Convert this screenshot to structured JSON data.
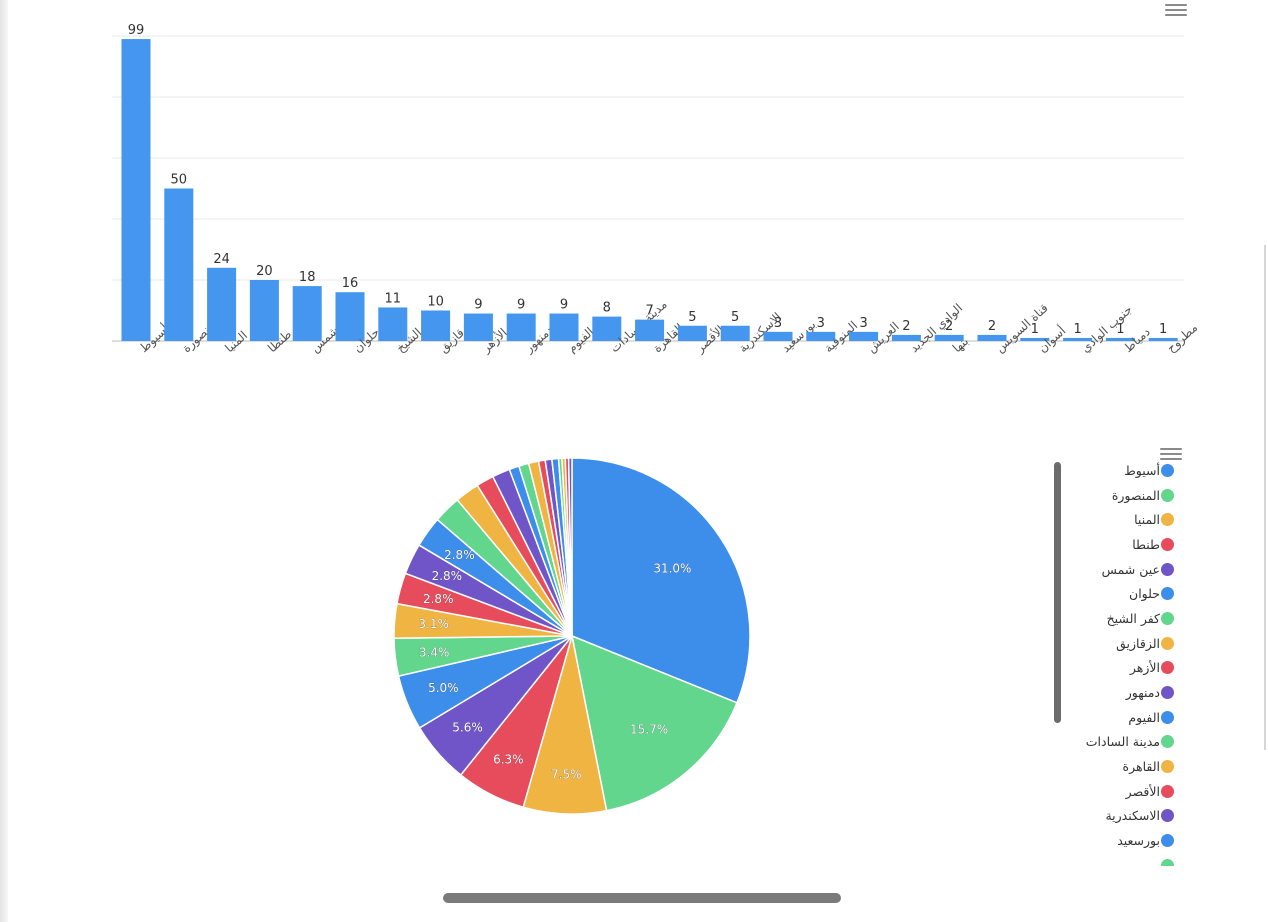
{
  "bar_chart": {
    "chart_data": {
      "type": "bar",
      "categories": [
        "أسيوط",
        "المنصورة",
        "المنيا",
        "طنطا",
        "عين شمس",
        "حلوان",
        "كفر الشيخ",
        "الزقازيق",
        "الأزهر",
        "دمنهور",
        "الفيوم",
        "مدينة السادات",
        "القاهرة",
        "الأقصر",
        "الاسكندرية",
        "بورسعيد",
        "المنوفية",
        "العريش",
        "الوادي الجديد",
        "بنها",
        "قناة السويس",
        "أسوان",
        "جنوب الوادي",
        "دمياط",
        "مطروح"
      ],
      "values": [
        99,
        50,
        24,
        20,
        18,
        16,
        11,
        10,
        9,
        9,
        9,
        8,
        7,
        5,
        5,
        3,
        3,
        3,
        2,
        2,
        2,
        1,
        1,
        1,
        1
      ],
      "ylim": [
        0,
        100
      ],
      "grid": true,
      "data_labels": true,
      "color": "#4596ee"
    }
  },
  "pie_chart": {
    "chart_data": {
      "type": "pie",
      "slices": [
        {
          "label": "أسيوط",
          "value": 31.0,
          "color": "#3d8eea"
        },
        {
          "label": "المنصورة",
          "value": 15.7,
          "color": "#62d68d"
        },
        {
          "label": "المنيا",
          "value": 7.5,
          "color": "#f0b442"
        },
        {
          "label": "طنطا",
          "value": 6.3,
          "color": "#e74c5c"
        },
        {
          "label": "عين شمس",
          "value": 5.6,
          "color": "#6f55c8"
        },
        {
          "label": "حلوان",
          "value": 5.0,
          "color": "#3d8eea"
        },
        {
          "label": "كفر الشيخ",
          "value": 3.4,
          "color": "#62d68d"
        },
        {
          "label": "الزقازيق",
          "value": 3.1,
          "color": "#f0b442"
        },
        {
          "label": "الأزهر",
          "value": 2.8,
          "color": "#e74c5c"
        },
        {
          "label": "دمنهور",
          "value": 2.8,
          "color": "#6f55c8"
        },
        {
          "label": "الفيوم",
          "value": 2.8,
          "color": "#3d8eea"
        },
        {
          "label": "مدينة السادات",
          "value": 2.5,
          "color": "#62d68d"
        },
        {
          "label": "القاهرة",
          "value": 2.2,
          "color": "#f0b442"
        },
        {
          "label": "الأقصر",
          "value": 1.6,
          "color": "#e74c5c"
        },
        {
          "label": "الاسكندرية",
          "value": 1.6,
          "color": "#6f55c8"
        },
        {
          "label": "بورسعيد",
          "value": 0.9,
          "color": "#3d8eea"
        },
        {
          "label": "المنوفية",
          "value": 0.9,
          "color": "#62d68d"
        },
        {
          "label": "العريش",
          "value": 0.9,
          "color": "#f0b442"
        },
        {
          "label": "الوادي الجديد",
          "value": 0.6,
          "color": "#e74c5c"
        },
        {
          "label": "بنها",
          "value": 0.6,
          "color": "#6f55c8"
        },
        {
          "label": "قناة السويس",
          "value": 0.6,
          "color": "#3d8eea"
        },
        {
          "label": "أسوان",
          "value": 0.3,
          "color": "#62d68d"
        },
        {
          "label": "جنوب الوادي",
          "value": 0.3,
          "color": "#f0b442"
        },
        {
          "label": "دمياط",
          "value": 0.3,
          "color": "#e74c5c"
        },
        {
          "label": "مطروح",
          "value": 0.3,
          "color": "#6f55c8"
        }
      ],
      "shown_labels": [
        "31.0%",
        "15.7%",
        "7.5%",
        "6.3%",
        "5.6%",
        "5.0%",
        "3.4%",
        "3.1%",
        "2.8%",
        "2.8%",
        "2.8%"
      ],
      "legend_placement": "right"
    }
  },
  "legend": {
    "items": [
      {
        "label": "أسيوط",
        "color": "#3d8eea"
      },
      {
        "label": "المنصورة",
        "color": "#62d68d"
      },
      {
        "label": "المنيا",
        "color": "#f0b442"
      },
      {
        "label": "طنطا",
        "color": "#e74c5c"
      },
      {
        "label": "عين شمس",
        "color": "#6f55c8"
      },
      {
        "label": "حلوان",
        "color": "#3d8eea"
      },
      {
        "label": "كفر الشيخ",
        "color": "#62d68d"
      },
      {
        "label": "الزقازيق",
        "color": "#f0b442"
      },
      {
        "label": "الأزهر",
        "color": "#e74c5c"
      },
      {
        "label": "دمنهور",
        "color": "#6f55c8"
      },
      {
        "label": "الفيوم",
        "color": "#3d8eea"
      },
      {
        "label": "مدينة السادات",
        "color": "#62d68d"
      },
      {
        "label": "القاهرة",
        "color": "#f0b442"
      },
      {
        "label": "الأقصر",
        "color": "#e74c5c"
      },
      {
        "label": "الاسكندرية",
        "color": "#6f55c8"
      },
      {
        "label": "بورسعيد",
        "color": "#3d8eea"
      },
      {
        "label": "",
        "color": "#62d68d"
      }
    ]
  },
  "icons": {
    "chart_menu": "hamburger-menu-icon"
  }
}
